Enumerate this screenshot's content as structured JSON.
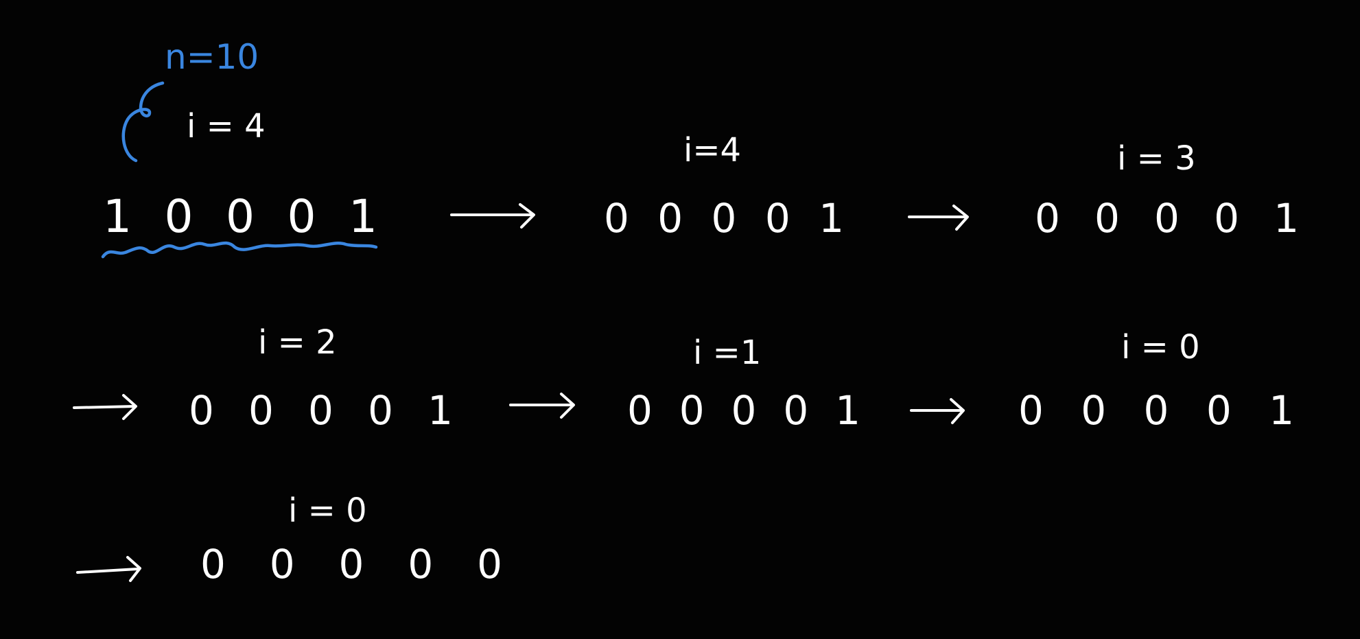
{
  "colors": {
    "background": "#030303",
    "ink": "#ffffff",
    "annotation": "#3a86e0"
  },
  "annotation": {
    "n_label": "n=10"
  },
  "steps": [
    {
      "index_label": "i = 4",
      "bits": "1 0 0 0 1"
    },
    {
      "index_label": "i=4",
      "bits": "0 0 0 0 1"
    },
    {
      "index_label": "i = 3",
      "bits": "0 0 0 0 1"
    },
    {
      "index_label": "i = 2",
      "bits": "0 0 0 0 1"
    },
    {
      "index_label": "i =1",
      "bits": "0 0 0 0 1"
    },
    {
      "index_label": "i = 0",
      "bits": "0 0 0 0 1"
    },
    {
      "index_label": "i = 0",
      "bits": "0 0 0 0 0"
    }
  ],
  "arrows": [
    "right-arrow-icon",
    "right-arrow-icon",
    "right-arrow-icon",
    "right-arrow-icon",
    "right-arrow-icon",
    "right-arrow-icon"
  ]
}
